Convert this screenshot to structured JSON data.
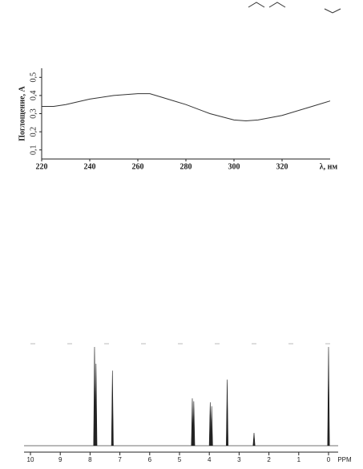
{
  "chart_data": [
    {
      "type": "line",
      "y_label": "Поглощение, А",
      "x_label": "λ, нм",
      "x": [
        220,
        225,
        230,
        240,
        250,
        260,
        265,
        270,
        280,
        290,
        300,
        305,
        310,
        320,
        330,
        340
      ],
      "series": [
        {
          "color": "#333333",
          "values": [
            0.34,
            0.34,
            0.35,
            0.38,
            0.4,
            0.41,
            0.41,
            0.39,
            0.35,
            0.3,
            0.265,
            0.26,
            0.265,
            0.29,
            0.33,
            0.37
          ]
        }
      ],
      "xlim": [
        220,
        340
      ],
      "xticks": [
        220,
        240,
        260,
        280,
        300,
        320
      ],
      "ylim": [
        0.05,
        0.55
      ],
      "yticks": [
        {
          "value": 0.1,
          "label": "0,1"
        },
        {
          "value": 0.2,
          "label": "0,2"
        },
        {
          "value": 0.3,
          "label": "0,3"
        },
        {
          "value": 0.4,
          "label": "0,4"
        },
        {
          "value": 0.5,
          "label": "0,5"
        }
      ]
    },
    {
      "type": "stick",
      "x_label": "PPM",
      "x": [
        7.85,
        7.8,
        7.25,
        4.57,
        4.52,
        3.97,
        3.92,
        3.4,
        2.5,
        0.0
      ],
      "values": [
        100,
        83,
        76,
        48,
        45,
        44,
        40,
        67,
        13,
        100
      ],
      "color": "#222222",
      "xlim": [
        10,
        0
      ],
      "xticks": [
        10,
        9,
        8,
        7,
        6,
        5,
        4,
        3,
        2,
        1,
        0
      ]
    }
  ]
}
